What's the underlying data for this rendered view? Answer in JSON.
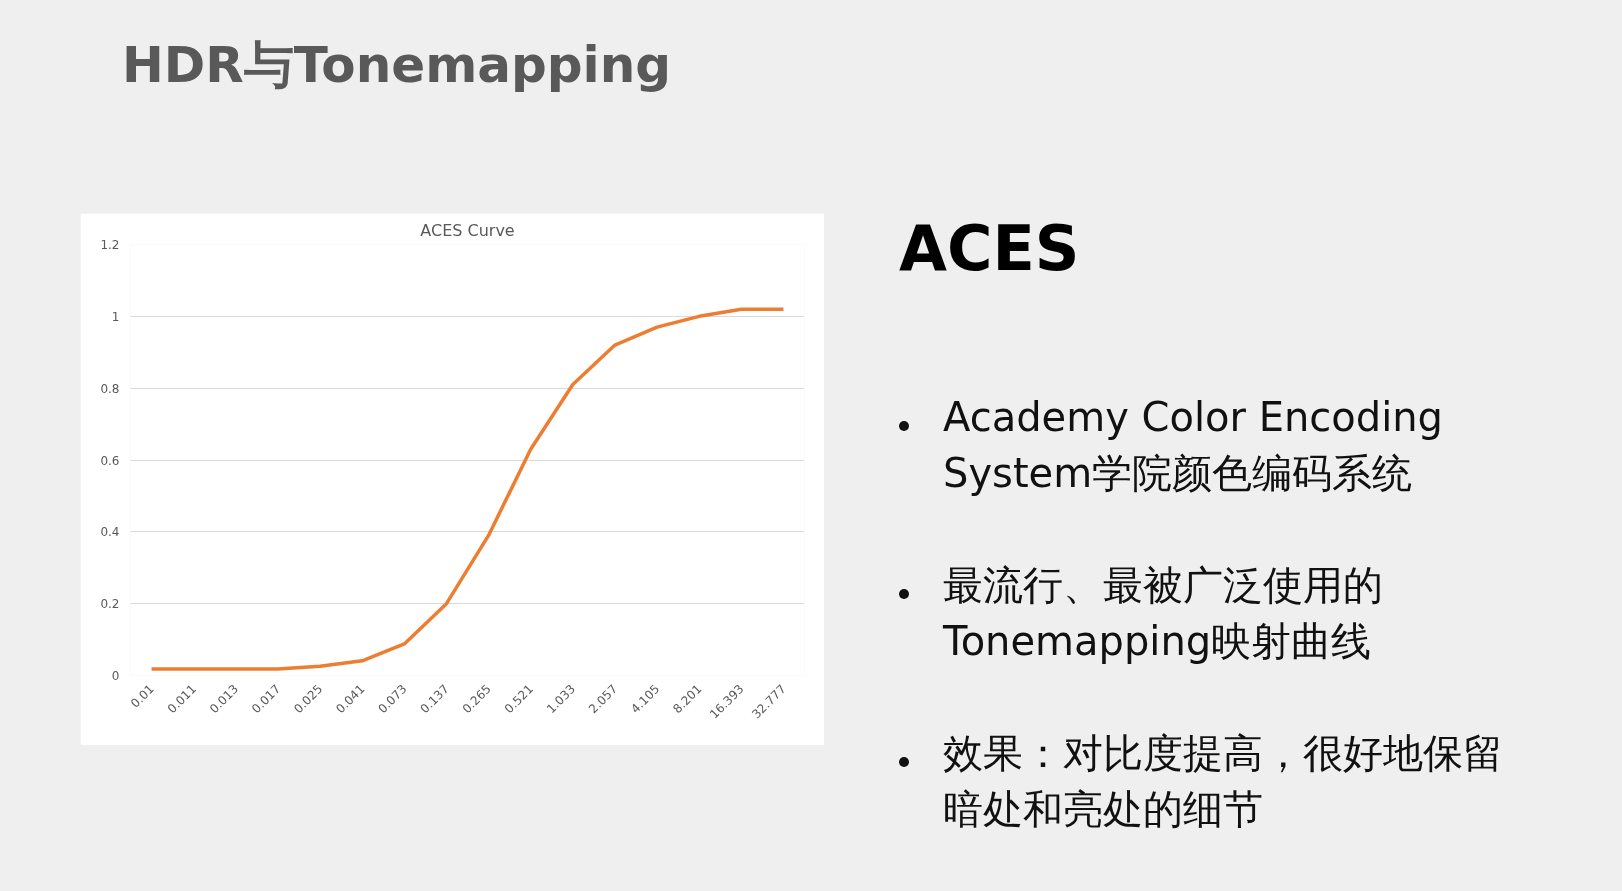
{
  "chart_data": {
    "type": "line",
    "title": "ACES Curve",
    "categories": [
      "0.01",
      "0.011",
      "0.013",
      "0.017",
      "0.025",
      "0.041",
      "0.073",
      "0.137",
      "0.265",
      "0.521",
      "1.033",
      "2.057",
      "4.105",
      "8.201",
      "16.393",
      "32.777"
    ],
    "series": [
      {
        "color": "#ed7d31",
        "values": [
          0.018,
          0.018,
          0.018,
          0.018,
          0.026,
          0.041,
          0.088,
          0.2,
          0.39,
          0.63,
          0.81,
          0.92,
          0.97,
          1.0,
          1.02,
          1.02
        ]
      }
    ],
    "ylim": [
      0,
      1.2
    ],
    "yticks": [
      0,
      0.2,
      0.4,
      0.6,
      0.8,
      1,
      1.2
    ],
    "grid": "y",
    "marker": "none",
    "line_style": "solid",
    "annotations": [
      "HDR与Tonemapping",
      "ACES",
      "Academy Color Encoding System学院颜色编码系统",
      "最流行、最被广泛使用的Tonemapping映射曲线",
      "效果：对比度提高，很好地保留暗处和亮处的细节"
    ]
  }
}
